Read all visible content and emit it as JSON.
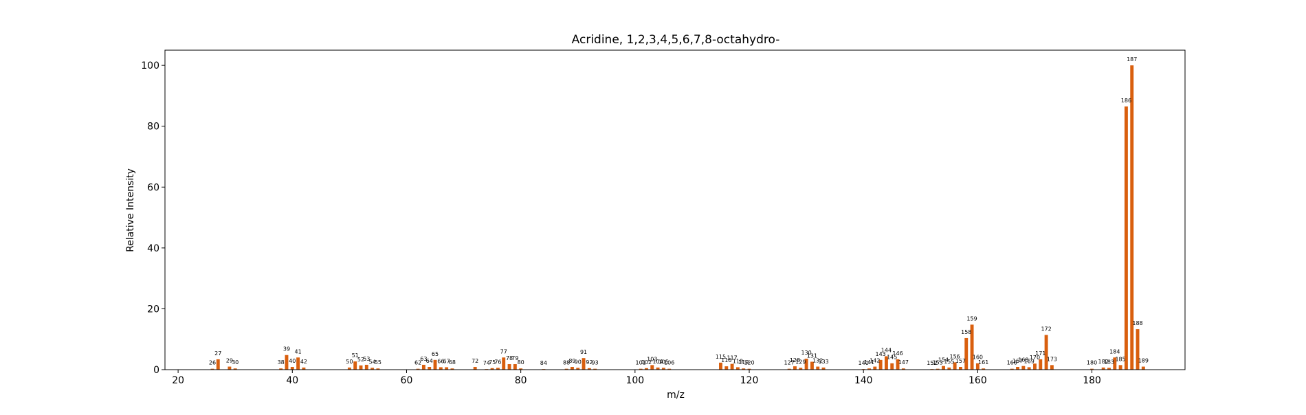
{
  "chart_data": {
    "type": "bar",
    "title": "Acridine, 1,2,3,4,5,6,7,8-octahydro-",
    "xlabel": "m/z",
    "ylabel": "Relative Intensity",
    "xlim": [
      17.7,
      196.3
    ],
    "ylim": [
      0,
      105
    ],
    "xticks": [
      20,
      40,
      60,
      80,
      100,
      120,
      140,
      160,
      180
    ],
    "yticks": [
      0,
      20,
      40,
      60,
      80,
      100
    ],
    "grid": false,
    "bar_color": "#d95f0e",
    "points": [
      {
        "mz": 26,
        "intensity": 0.3
      },
      {
        "mz": 27,
        "intensity": 3.4
      },
      {
        "mz": 29,
        "intensity": 1.0
      },
      {
        "mz": 30,
        "intensity": 0.4
      },
      {
        "mz": 38,
        "intensity": 0.4
      },
      {
        "mz": 39,
        "intensity": 4.8
      },
      {
        "mz": 40,
        "intensity": 0.9
      },
      {
        "mz": 41,
        "intensity": 4.0
      },
      {
        "mz": 42,
        "intensity": 0.7
      },
      {
        "mz": 50,
        "intensity": 0.7
      },
      {
        "mz": 51,
        "intensity": 2.7
      },
      {
        "mz": 52,
        "intensity": 1.4
      },
      {
        "mz": 53,
        "intensity": 1.6
      },
      {
        "mz": 54,
        "intensity": 0.6
      },
      {
        "mz": 55,
        "intensity": 0.4
      },
      {
        "mz": 62,
        "intensity": 0.3
      },
      {
        "mz": 63,
        "intensity": 1.6
      },
      {
        "mz": 64,
        "intensity": 0.9
      },
      {
        "mz": 65,
        "intensity": 3.2
      },
      {
        "mz": 66,
        "intensity": 0.8
      },
      {
        "mz": 67,
        "intensity": 0.8
      },
      {
        "mz": 68,
        "intensity": 0.4
      },
      {
        "mz": 72,
        "intensity": 0.9
      },
      {
        "mz": 74,
        "intensity": 0.2
      },
      {
        "mz": 75,
        "intensity": 0.5
      },
      {
        "mz": 76,
        "intensity": 0.6
      },
      {
        "mz": 77,
        "intensity": 4.0
      },
      {
        "mz": 78,
        "intensity": 1.8
      },
      {
        "mz": 79,
        "intensity": 1.8
      },
      {
        "mz": 80,
        "intensity": 0.4
      },
      {
        "mz": 84,
        "intensity": 0.2
      },
      {
        "mz": 88,
        "intensity": 0.3
      },
      {
        "mz": 89,
        "intensity": 0.9
      },
      {
        "mz": 90,
        "intensity": 0.6
      },
      {
        "mz": 91,
        "intensity": 3.8
      },
      {
        "mz": 92,
        "intensity": 0.5
      },
      {
        "mz": 93,
        "intensity": 0.3
      },
      {
        "mz": 101,
        "intensity": 0.3
      },
      {
        "mz": 102,
        "intensity": 0.5
      },
      {
        "mz": 103,
        "intensity": 1.5
      },
      {
        "mz": 104,
        "intensity": 0.7
      },
      {
        "mz": 105,
        "intensity": 0.6
      },
      {
        "mz": 106,
        "intensity": 0.3
      },
      {
        "mz": 115,
        "intensity": 2.3
      },
      {
        "mz": 116,
        "intensity": 1.1
      },
      {
        "mz": 117,
        "intensity": 1.9
      },
      {
        "mz": 118,
        "intensity": 0.8
      },
      {
        "mz": 119,
        "intensity": 0.4
      },
      {
        "mz": 120,
        "intensity": 0.3
      },
      {
        "mz": 127,
        "intensity": 0.3
      },
      {
        "mz": 128,
        "intensity": 1.1
      },
      {
        "mz": 129,
        "intensity": 0.6
      },
      {
        "mz": 130,
        "intensity": 3.6
      },
      {
        "mz": 131,
        "intensity": 2.6
      },
      {
        "mz": 132,
        "intensity": 1.0
      },
      {
        "mz": 133,
        "intensity": 0.7
      },
      {
        "mz": 140,
        "intensity": 0.2
      },
      {
        "mz": 141,
        "intensity": 0.4
      },
      {
        "mz": 142,
        "intensity": 1.0
      },
      {
        "mz": 143,
        "intensity": 3.2
      },
      {
        "mz": 144,
        "intensity": 4.4
      },
      {
        "mz": 145,
        "intensity": 2.1
      },
      {
        "mz": 146,
        "intensity": 3.4
      },
      {
        "mz": 147,
        "intensity": 0.4
      },
      {
        "mz": 152,
        "intensity": 0.2
      },
      {
        "mz": 153,
        "intensity": 0.3
      },
      {
        "mz": 154,
        "intensity": 1.2
      },
      {
        "mz": 155,
        "intensity": 0.7
      },
      {
        "mz": 156,
        "intensity": 2.4
      },
      {
        "mz": 157,
        "intensity": 0.9
      },
      {
        "mz": 158,
        "intensity": 10.4
      },
      {
        "mz": 159,
        "intensity": 14.8
      },
      {
        "mz": 160,
        "intensity": 2.1
      },
      {
        "mz": 161,
        "intensity": 0.4
      },
      {
        "mz": 166,
        "intensity": 0.3
      },
      {
        "mz": 167,
        "intensity": 0.9
      },
      {
        "mz": 168,
        "intensity": 1.2
      },
      {
        "mz": 169,
        "intensity": 0.8
      },
      {
        "mz": 170,
        "intensity": 2.0
      },
      {
        "mz": 171,
        "intensity": 3.4
      },
      {
        "mz": 172,
        "intensity": 11.4
      },
      {
        "mz": 173,
        "intensity": 1.5
      },
      {
        "mz": 180,
        "intensity": 0.3
      },
      {
        "mz": 182,
        "intensity": 0.7
      },
      {
        "mz": 183,
        "intensity": 0.6
      },
      {
        "mz": 184,
        "intensity": 4.0
      },
      {
        "mz": 185,
        "intensity": 1.5
      },
      {
        "mz": 186,
        "intensity": 86.5
      },
      {
        "mz": 187,
        "intensity": 100.0
      },
      {
        "mz": 188,
        "intensity": 13.3
      },
      {
        "mz": 189,
        "intensity": 1.0
      }
    ]
  }
}
